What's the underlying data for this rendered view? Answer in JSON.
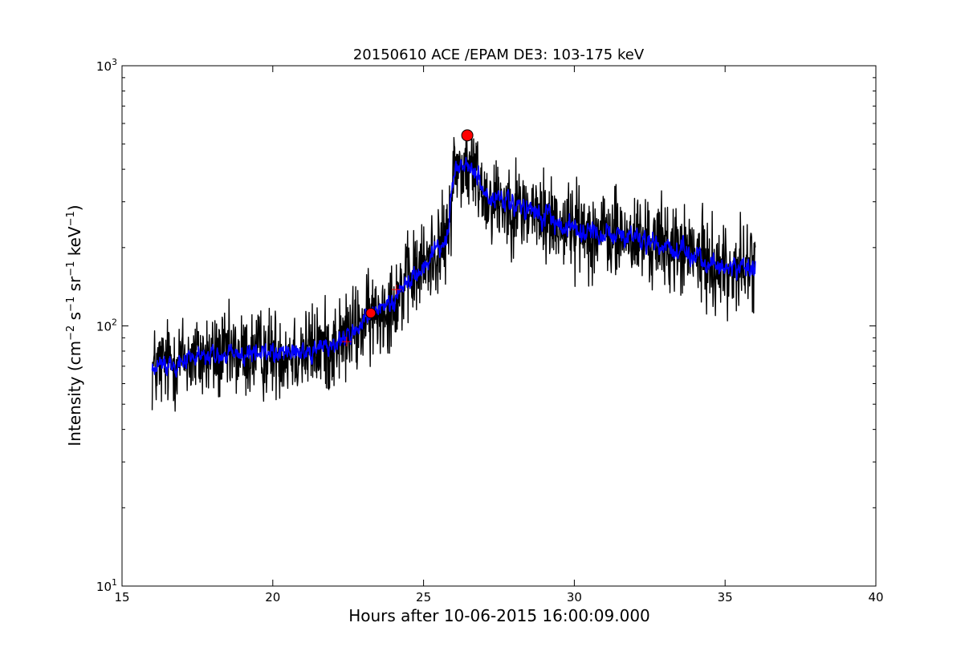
{
  "chart_data": {
    "type": "line",
    "title": "20150610 ACE /EPAM DE3: 103-175 keV",
    "xlabel": "Hours after 10-06-2015 16:00:09.000",
    "ylabel": {
      "prefix": "Intensity (cm",
      "exp1": "−2",
      "mid1": " s",
      "exp2": "−1",
      "mid2": " sr",
      "exp3": "−1",
      "mid3": " keV",
      "exp4": "−1",
      "suffix": ")"
    },
    "xlim": [
      15,
      40
    ],
    "ylim": [
      10,
      1000
    ],
    "yscale": "log",
    "grid": false,
    "x_ticks": [
      {
        "value": 15,
        "label": "15"
      },
      {
        "value": 20,
        "label": "20"
      },
      {
        "value": 25,
        "label": "25"
      },
      {
        "value": 30,
        "label": "30"
      },
      {
        "value": 35,
        "label": "35"
      },
      {
        "value": 40,
        "label": "40"
      }
    ],
    "y_ticks": [
      {
        "value": 10,
        "base": "10",
        "exp": "1"
      },
      {
        "value": 100,
        "base": "10",
        "exp": "2"
      },
      {
        "value": 1000,
        "base": "10",
        "exp": "3"
      }
    ],
    "series": [
      {
        "kind": "raw",
        "color": "#000000",
        "x_range": [
          16.0,
          36.0
        ],
        "trend": [
          [
            16.0,
            68
          ],
          [
            17.0,
            75
          ],
          [
            18.0,
            76
          ],
          [
            19.0,
            77
          ],
          [
            20.0,
            79
          ],
          [
            21.0,
            80
          ],
          [
            22.0,
            84
          ],
          [
            22.5,
            92
          ],
          [
            23.0,
            102
          ],
          [
            23.5,
            112
          ],
          [
            24.0,
            128
          ],
          [
            24.5,
            148
          ],
          [
            25.0,
            170
          ],
          [
            25.5,
            200
          ],
          [
            25.8,
            215
          ],
          [
            26.0,
            400
          ],
          [
            26.4,
            410
          ],
          [
            26.8,
            380
          ],
          [
            27.0,
            320
          ],
          [
            28.0,
            290
          ],
          [
            29.0,
            260
          ],
          [
            30.0,
            240
          ],
          [
            31.0,
            225
          ],
          [
            32.0,
            215
          ],
          [
            33.0,
            205
          ],
          [
            34.0,
            185
          ],
          [
            35.0,
            165
          ],
          [
            36.0,
            170
          ]
        ],
        "spread_decades": 0.085
      },
      {
        "kind": "smoothed",
        "color": "#0000ff",
        "x_range": [
          16.0,
          36.0
        ],
        "trend": [
          [
            16.0,
            68
          ],
          [
            17.0,
            75
          ],
          [
            18.0,
            76
          ],
          [
            19.0,
            77
          ],
          [
            20.0,
            79
          ],
          [
            21.0,
            80
          ],
          [
            22.0,
            84
          ],
          [
            22.5,
            92
          ],
          [
            23.0,
            102
          ],
          [
            23.5,
            112
          ],
          [
            24.0,
            128
          ],
          [
            24.5,
            148
          ],
          [
            25.0,
            170
          ],
          [
            25.5,
            200
          ],
          [
            25.8,
            215
          ],
          [
            26.0,
            400
          ],
          [
            26.4,
            410
          ],
          [
            26.8,
            380
          ],
          [
            27.0,
            320
          ],
          [
            28.0,
            290
          ],
          [
            29.0,
            260
          ],
          [
            30.0,
            240
          ],
          [
            31.0,
            225
          ],
          [
            32.0,
            215
          ],
          [
            33.0,
            205
          ],
          [
            34.0,
            185
          ],
          [
            35.0,
            165
          ],
          [
            36.0,
            170
          ]
        ],
        "spread_decades": 0.04
      }
    ],
    "markers": [
      {
        "x": 22.45,
        "y": 87,
        "symbol": "plus",
        "color": "#ff0000"
      },
      {
        "x": 23.25,
        "y": 112,
        "symbol": "circle",
        "size": "medium",
        "color": "#ff0000"
      },
      {
        "x": 24.1,
        "y": 138,
        "symbol": "plus",
        "color": "#ff0000"
      },
      {
        "x": 26.45,
        "y": 540,
        "symbol": "circle",
        "size": "large",
        "color": "#ff0000"
      }
    ]
  }
}
